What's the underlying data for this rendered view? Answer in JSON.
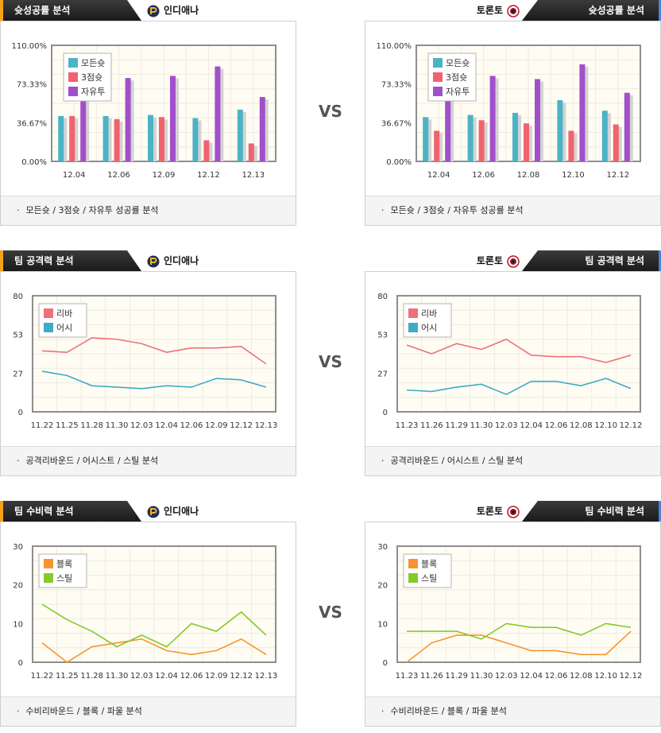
{
  "colors": {
    "made": "#4bb3c6",
    "three": "#f0636e",
    "free": "#a24fcb",
    "reb": "#f07079",
    "ast": "#3fabc5",
    "blk": "#f79430",
    "stl": "#86c92b"
  },
  "teams": {
    "left": "인디애나",
    "right": "토론토"
  },
  "vs_label": "VS",
  "sections": [
    {
      "title": "슛성공률 분석",
      "footer": "모든슛 / 3점슛 / 자유투 성공률 분석",
      "legend": [
        "모든슛",
        "3점슛",
        "자유투"
      ],
      "charts": [
        {
          "type": "bar",
          "categories": [
            "12.04",
            "12.06",
            "12.09",
            "12.12",
            "12.13"
          ],
          "y_tick_labels": [
            "0.00%",
            "36.67%",
            "73.33%",
            "110.00%"
          ],
          "ylim": [
            0,
            110
          ],
          "series": [
            {
              "name": "모든슛",
              "values": [
                43,
                43,
                44,
                41,
                49
              ]
            },
            {
              "name": "3점슛",
              "values": [
                43,
                40,
                42,
                20,
                17
              ]
            },
            {
              "name": "자유투",
              "values": [
                67,
                79,
                81,
                90,
                61
              ]
            }
          ]
        },
        {
          "type": "bar",
          "categories": [
            "12.04",
            "12.06",
            "12.08",
            "12.10",
            "12.12"
          ],
          "y_tick_labels": [
            "0.00%",
            "36.67%",
            "73.33%",
            "110.00%"
          ],
          "ylim": [
            0,
            110
          ],
          "series": [
            {
              "name": "모든슛",
              "values": [
                42,
                44,
                46,
                58,
                48
              ]
            },
            {
              "name": "3점슛",
              "values": [
                29,
                39,
                36,
                29,
                35
              ]
            },
            {
              "name": "자유투",
              "values": [
                66,
                81,
                78,
                92,
                65
              ]
            }
          ]
        }
      ]
    },
    {
      "title": "팀 공격력 분석",
      "footer": "공격리바운드 / 어시스트 / 스틸 분석",
      "legend": [
        "리바",
        "어시"
      ],
      "charts": [
        {
          "type": "line",
          "categories": [
            "11.22",
            "11.25",
            "11.28",
            "11.30",
            "12.03",
            "12.04",
            "12.06",
            "12.09",
            "12.12",
            "12.13"
          ],
          "y_tick_labels": [
            "0",
            "27",
            "53",
            "80"
          ],
          "ylim": [
            0,
            80
          ],
          "series": [
            {
              "name": "리바",
              "values": [
                42,
                41,
                51,
                50,
                47,
                41,
                44,
                44,
                45,
                33
              ]
            },
            {
              "name": "어시",
              "values": [
                28,
                25,
                18,
                17,
                16,
                18,
                17,
                23,
                22,
                17
              ]
            }
          ]
        },
        {
          "type": "line",
          "categories": [
            "11.23",
            "11.26",
            "11.29",
            "11.30",
            "12.03",
            "12.04",
            "12.06",
            "12.08",
            "12.10",
            "12.12"
          ],
          "y_tick_labels": [
            "0",
            "27",
            "53",
            "80"
          ],
          "ylim": [
            0,
            80
          ],
          "series": [
            {
              "name": "리바",
              "values": [
                46,
                40,
                47,
                43,
                50,
                39,
                38,
                38,
                34,
                39
              ]
            },
            {
              "name": "어시",
              "values": [
                15,
                14,
                17,
                19,
                12,
                21,
                21,
                18,
                23,
                16
              ]
            }
          ]
        }
      ]
    },
    {
      "title": "팀 수비력 분석",
      "footer": "수비리바운드 / 블록 / 파울 분석",
      "legend": [
        "블록",
        "스틸"
      ],
      "charts": [
        {
          "type": "line",
          "categories": [
            "11.22",
            "11.25",
            "11.28",
            "11.30",
            "12.03",
            "12.04",
            "12.06",
            "12.09",
            "12.12",
            "12.13"
          ],
          "y_tick_labels": [
            "0",
            "10",
            "20",
            "30"
          ],
          "ylim": [
            0,
            30
          ],
          "series": [
            {
              "name": "블록",
              "values": [
                5,
                0,
                4,
                5,
                6,
                3,
                2,
                3,
                6,
                2
              ]
            },
            {
              "name": "스틸",
              "values": [
                15,
                11,
                8,
                4,
                7,
                4,
                10,
                8,
                13,
                7
              ]
            }
          ]
        },
        {
          "type": "line",
          "categories": [
            "11.23",
            "11.26",
            "11.29",
            "11.30",
            "12.03",
            "12.04",
            "12.06",
            "12.08",
            "12.10",
            "12.12"
          ],
          "y_tick_labels": [
            "0",
            "10",
            "20",
            "30"
          ],
          "ylim": [
            0,
            30
          ],
          "series": [
            {
              "name": "블록",
              "values": [
                0,
                5,
                7,
                7,
                5,
                3,
                3,
                2,
                2,
                8
              ]
            },
            {
              "name": "스틸",
              "values": [
                8,
                8,
                8,
                6,
                10,
                9,
                9,
                7,
                10,
                9
              ]
            }
          ]
        }
      ]
    }
  ],
  "chart_data": [
    {
      "type": "bar",
      "categories": [
        "12.04",
        "12.06",
        "12.09",
        "12.12",
        "12.13"
      ],
      "ylim": [
        0,
        110
      ],
      "series": [
        {
          "name": "모든슛",
          "values": [
            43,
            43,
            44,
            41,
            49
          ]
        },
        {
          "name": "3점슛",
          "values": [
            43,
            40,
            42,
            20,
            17
          ]
        },
        {
          "name": "자유투",
          "values": [
            67,
            79,
            81,
            90,
            61
          ]
        }
      ]
    },
    {
      "type": "bar",
      "categories": [
        "12.04",
        "12.06",
        "12.08",
        "12.10",
        "12.12"
      ],
      "ylim": [
        0,
        110
      ],
      "series": [
        {
          "name": "모든슛",
          "values": [
            42,
            44,
            46,
            58,
            48
          ]
        },
        {
          "name": "3점슛",
          "values": [
            29,
            39,
            36,
            29,
            35
          ]
        },
        {
          "name": "자유투",
          "values": [
            66,
            81,
            78,
            92,
            65
          ]
        }
      ]
    },
    {
      "type": "line",
      "categories": [
        "11.22",
        "11.25",
        "11.28",
        "11.30",
        "12.03",
        "12.04",
        "12.06",
        "12.09",
        "12.12",
        "12.13"
      ],
      "ylim": [
        0,
        80
      ],
      "series": [
        {
          "name": "리바",
          "values": [
            42,
            41,
            51,
            50,
            47,
            41,
            44,
            44,
            45,
            33
          ]
        },
        {
          "name": "어시",
          "values": [
            28,
            25,
            18,
            17,
            16,
            18,
            17,
            23,
            22,
            17
          ]
        }
      ]
    },
    {
      "type": "line",
      "categories": [
        "11.23",
        "11.26",
        "11.29",
        "11.30",
        "12.03",
        "12.04",
        "12.06",
        "12.08",
        "12.10",
        "12.12"
      ],
      "ylim": [
        0,
        80
      ],
      "series": [
        {
          "name": "리바",
          "values": [
            46,
            40,
            47,
            43,
            50,
            39,
            38,
            38,
            34,
            39
          ]
        },
        {
          "name": "어시",
          "values": [
            15,
            14,
            17,
            19,
            12,
            21,
            21,
            18,
            23,
            16
          ]
        }
      ]
    },
    {
      "type": "line",
      "categories": [
        "11.22",
        "11.25",
        "11.28",
        "11.30",
        "12.03",
        "12.04",
        "12.06",
        "12.09",
        "12.12",
        "12.13"
      ],
      "ylim": [
        0,
        30
      ],
      "series": [
        {
          "name": "블록",
          "values": [
            5,
            0,
            4,
            5,
            6,
            3,
            2,
            3,
            6,
            2
          ]
        },
        {
          "name": "스틸",
          "values": [
            15,
            11,
            8,
            4,
            7,
            4,
            10,
            8,
            13,
            7
          ]
        }
      ]
    },
    {
      "type": "line",
      "categories": [
        "11.23",
        "11.26",
        "11.29",
        "11.30",
        "12.03",
        "12.04",
        "12.06",
        "12.08",
        "12.10",
        "12.12"
      ],
      "ylim": [
        0,
        30
      ],
      "series": [
        {
          "name": "블록",
          "values": [
            0,
            5,
            7,
            7,
            5,
            3,
            3,
            2,
            2,
            8
          ]
        },
        {
          "name": "스틸",
          "values": [
            8,
            8,
            8,
            6,
            10,
            9,
            9,
            7,
            10,
            9
          ]
        }
      ]
    }
  ]
}
